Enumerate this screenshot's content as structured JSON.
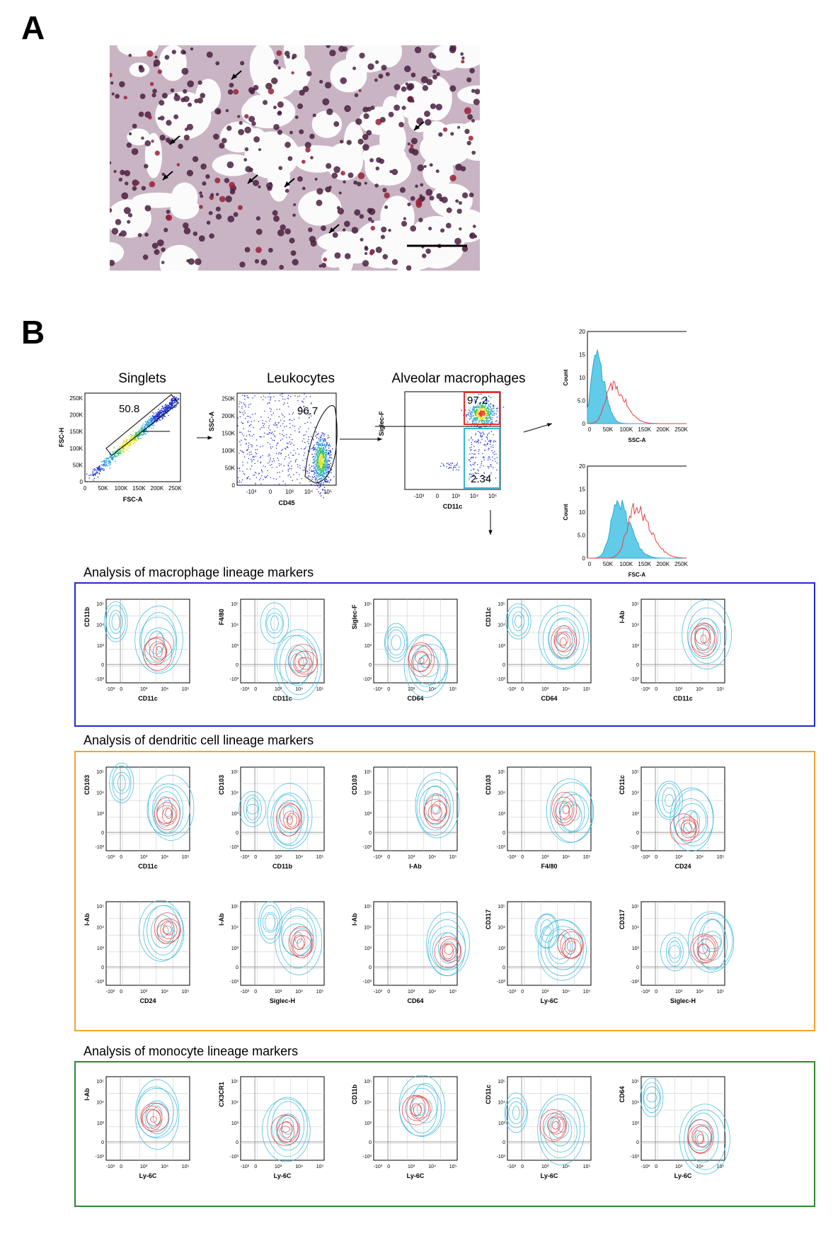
{
  "panels": {
    "a": "A",
    "b": "B"
  },
  "colors": {
    "blue_frame": "#1f2bd0",
    "orange_frame": "#f0a431",
    "green_frame": "#2b8a2e",
    "cyan": "#35b8e0",
    "red": "#e84040",
    "histo_bg": "#e4dfe6",
    "nuclei": "#4a2040"
  },
  "gating": {
    "singlets": {
      "title": "Singlets",
      "xlabel": "FSC-A",
      "ylabel": "FSC-H",
      "gate_value": "50.8",
      "ticks": [
        "0",
        "50K",
        "100K",
        "150K",
        "200K",
        "250K"
      ]
    },
    "leukocytes": {
      "title": "Leukocytes",
      "xlabel": "CD45",
      "ylabel": "SSC-A",
      "gate_value": "96.7",
      "yticks": [
        "0",
        "50K",
        "100K",
        "150K",
        "200K",
        "250K"
      ]
    },
    "alveolar": {
      "title": "Alveolar macrophages",
      "xlabel": "CD11c",
      "ylabel": "Siglec-F",
      "gate_high": "97.2",
      "gate_low": "2.34"
    }
  },
  "histograms": {
    "ssc": {
      "xlabel": "SSC-A",
      "ylabel": "Count",
      "yticks": [
        "0",
        "5.0",
        "10",
        "15",
        "20"
      ],
      "xticks": [
        "0",
        "50K",
        "100K",
        "150K",
        "200K",
        "250K"
      ]
    },
    "fsc": {
      "xlabel": "FSC-A",
      "ylabel": "Count",
      "yticks": [
        "0",
        "5.0",
        "10",
        "15",
        "20"
      ],
      "xticks": [
        "0",
        "50K",
        "100K",
        "150K",
        "200K",
        "250K"
      ]
    }
  },
  "sections": {
    "macrophage": {
      "title": "Analysis of macrophage lineage markers",
      "plots": [
        {
          "x": "CD11c",
          "y": "CD11b"
        },
        {
          "x": "CD11c",
          "y": "F4/80"
        },
        {
          "x": "CD64",
          "y": "Siglec-F"
        },
        {
          "x": "CD64",
          "y": "CD11c"
        },
        {
          "x": "CD11c",
          "y": "I-Ab"
        }
      ]
    },
    "dendritic": {
      "title": "Analysis of dendritic cell lineage markers",
      "plots": [
        {
          "x": "CD11c",
          "y": "CD103"
        },
        {
          "x": "CD11b",
          "y": "CD103"
        },
        {
          "x": "I-Ab",
          "y": "CD103"
        },
        {
          "x": "F4/80",
          "y": "CD103"
        },
        {
          "x": "CD24",
          "y": "CD11c"
        },
        {
          "x": "CD24",
          "y": "I-Ab"
        },
        {
          "x": "Siglec-H",
          "y": "I-Ab"
        },
        {
          "x": "CD64",
          "y": "I-Ab"
        },
        {
          "x": "Ly-6C",
          "y": "CD317"
        },
        {
          "x": "Siglec-H",
          "y": "CD317"
        }
      ]
    },
    "monocyte": {
      "title": "Analysis of monocyte lineage markers",
      "plots": [
        {
          "x": "Ly-6C",
          "y": "I-Ab"
        },
        {
          "x": "Ly-6C",
          "y": "CX3CR1"
        },
        {
          "x": "Ly-6C",
          "y": "CD11b"
        },
        {
          "x": "Ly-6C",
          "y": "CD11c"
        },
        {
          "x": "Ly-6C",
          "y": "CD64"
        }
      ]
    }
  },
  "log_ticks": {
    "x": [
      "-10³",
      "0",
      "10³",
      "10⁴",
      "10⁵"
    ],
    "y": [
      "10⁵",
      "10⁴",
      "10³",
      "0",
      "-10³"
    ]
  }
}
